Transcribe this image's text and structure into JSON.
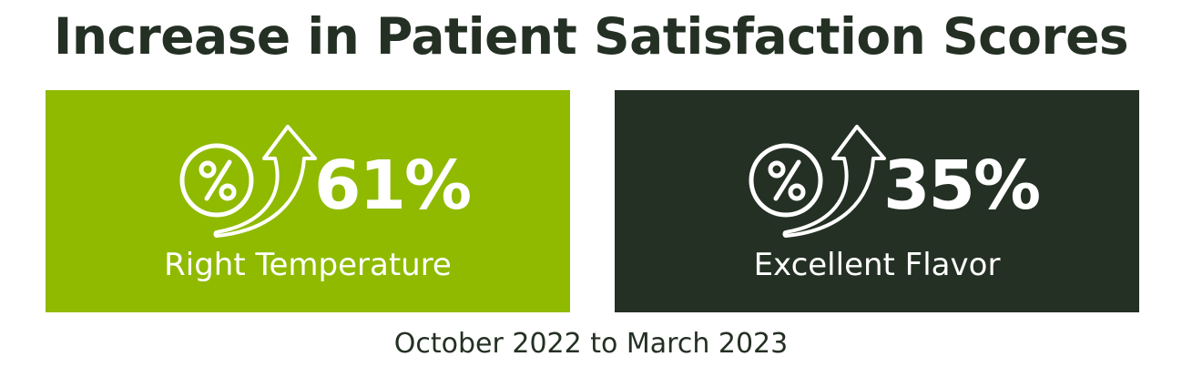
{
  "title": "Increase in Patient Satisfaction Scores",
  "cards": [
    {
      "value": "61%",
      "label": "Right Temperature",
      "background": "#8fba00",
      "icon": "percent-growth-arrow-icon"
    },
    {
      "value": "35%",
      "label": "Excellent Flavor",
      "background": "#243024",
      "icon": "percent-growth-arrow-icon"
    }
  ],
  "footer": "October 2022 to March 2023",
  "colors": {
    "text": "#243024",
    "green": "#8fba00",
    "dark": "#243024"
  }
}
